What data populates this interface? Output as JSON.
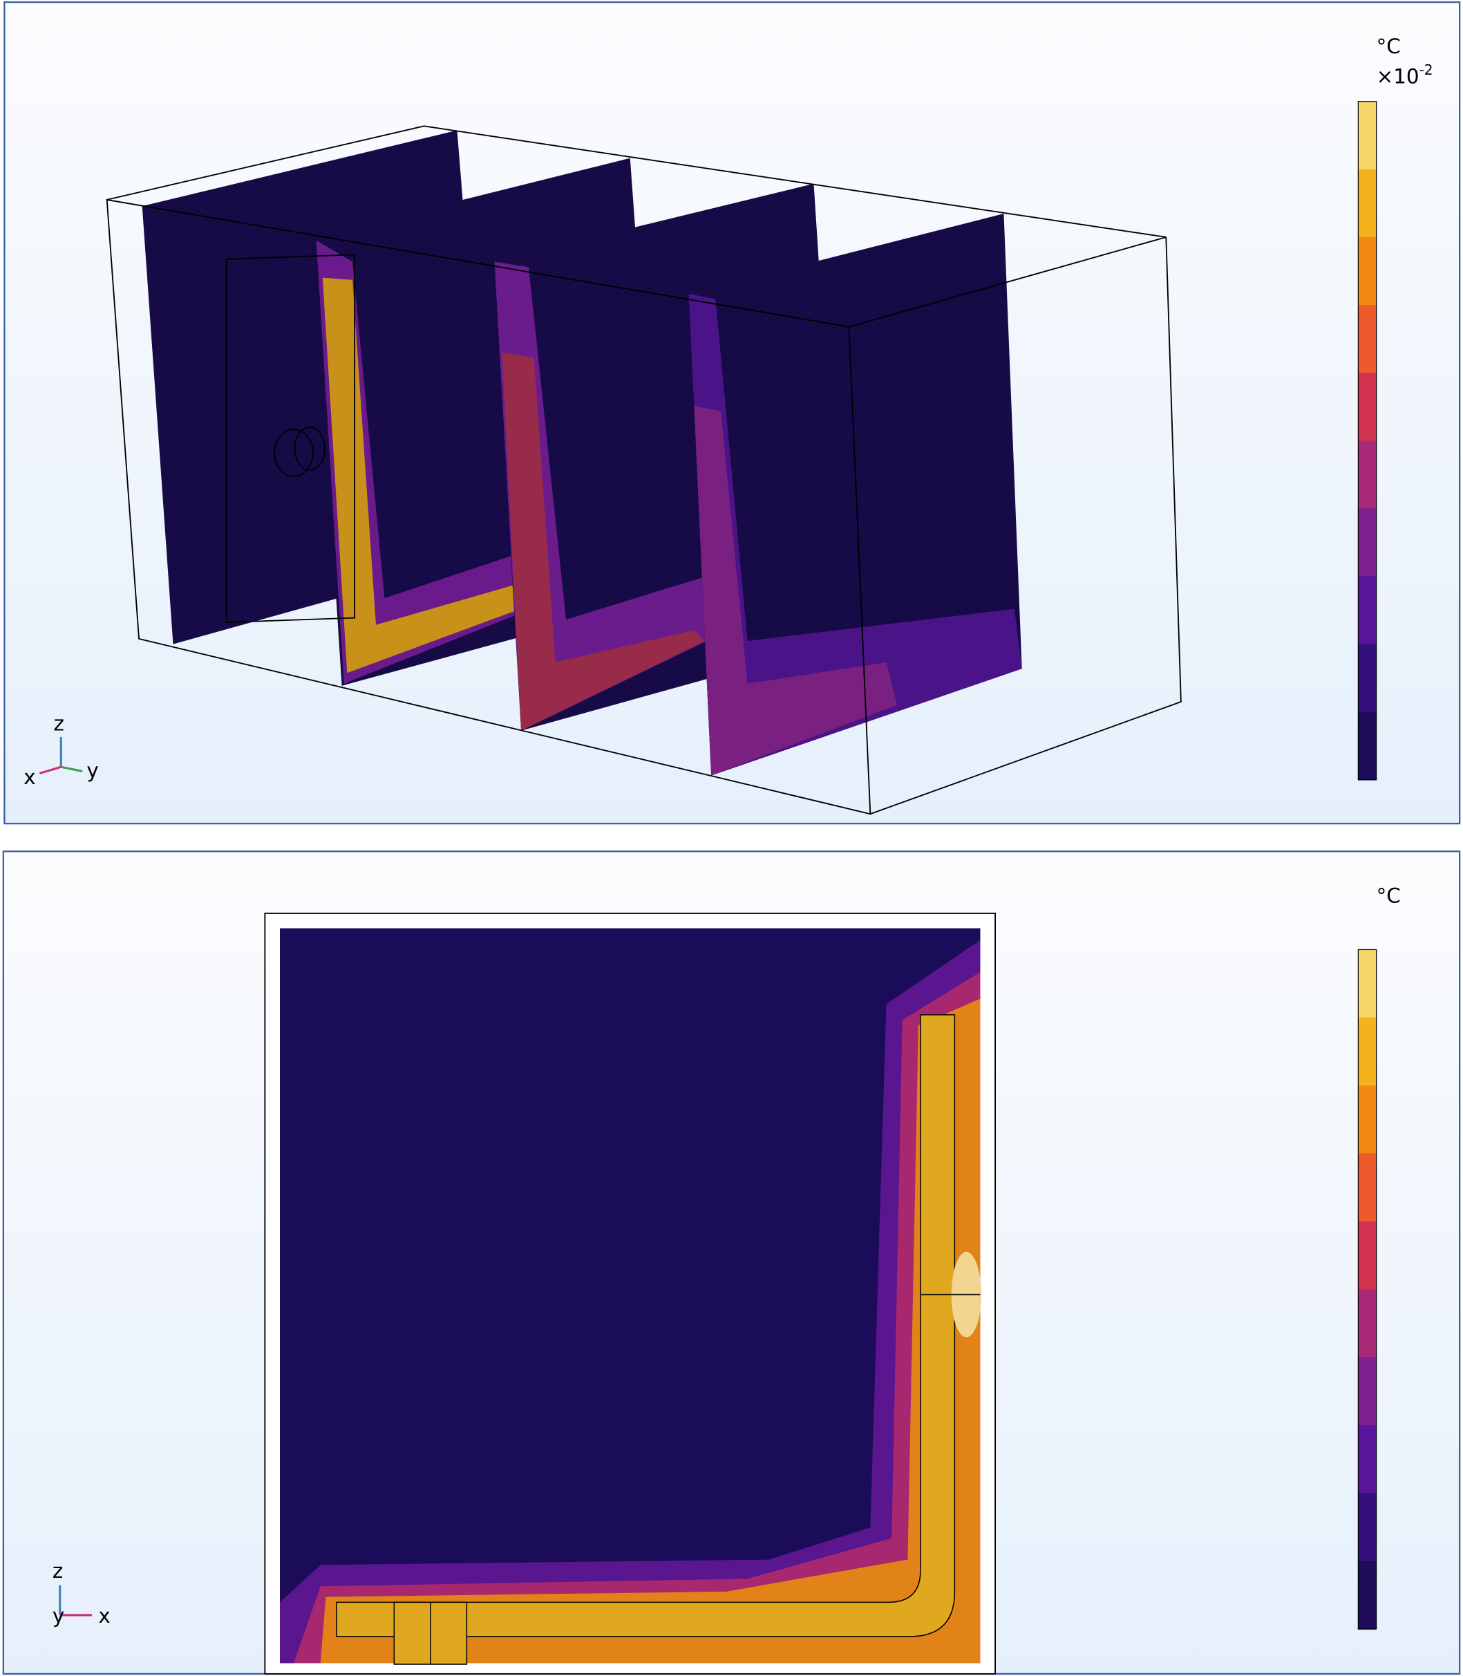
{
  "panels": [
    {
      "unit": "°C",
      "scale_base": "×10",
      "scale_exponent": "-2",
      "axes": {
        "up": "z",
        "left": "x",
        "right": "y"
      }
    },
    {
      "unit": "°C",
      "axes": {
        "up": "z",
        "center": "y",
        "right": "x"
      }
    }
  ]
}
